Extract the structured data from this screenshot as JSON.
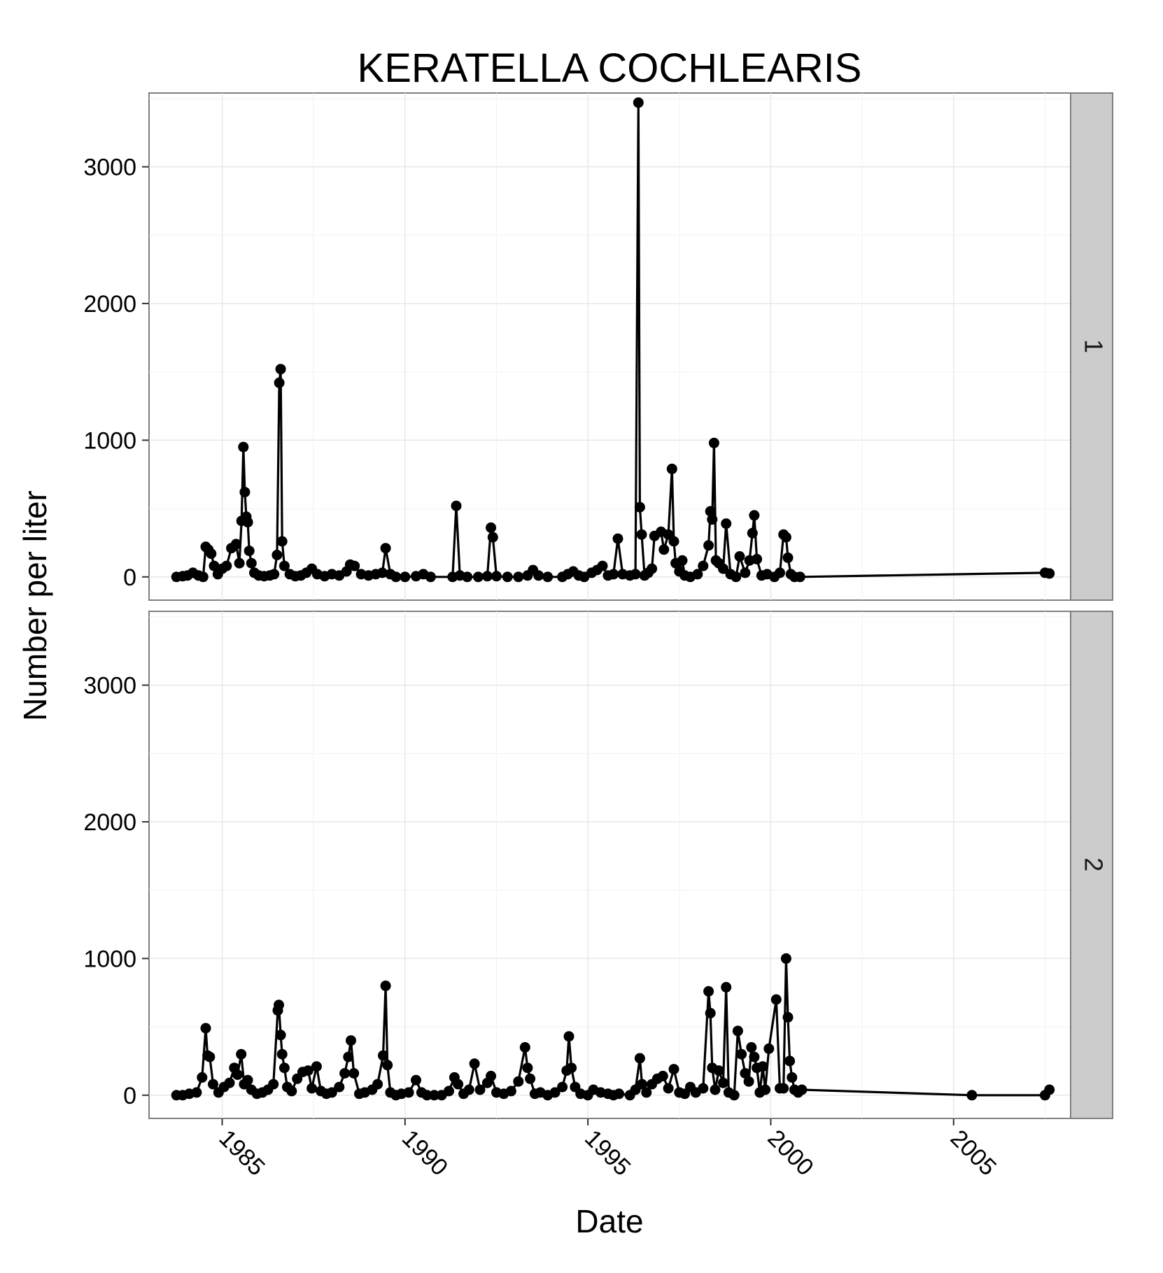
{
  "chart_data": {
    "type": "line",
    "title": "KERATELLA COCHLEARIS",
    "xlabel": "Date",
    "ylabel": "Number per liter",
    "x_ticks": [
      "1985",
      "1990",
      "1995",
      "2000",
      "2005"
    ],
    "y_ticks": [
      "0",
      "1000",
      "2000",
      "3000"
    ],
    "xlim": [
      1983.0,
      2008.2
    ],
    "ylim": [
      -170,
      3540
    ],
    "grid": true,
    "legend": "none",
    "marker": "filled-circle",
    "line_color": "#000000",
    "panels": [
      {
        "strip": "1",
        "points": [
          [
            1983.75,
            0
          ],
          [
            1983.92,
            5
          ],
          [
            1984.05,
            10
          ],
          [
            1984.2,
            30
          ],
          [
            1984.35,
            10
          ],
          [
            1984.48,
            0
          ],
          [
            1984.55,
            220
          ],
          [
            1984.62,
            200
          ],
          [
            1984.7,
            170
          ],
          [
            1984.78,
            80
          ],
          [
            1984.88,
            20
          ],
          [
            1985.0,
            60
          ],
          [
            1985.12,
            80
          ],
          [
            1985.25,
            210
          ],
          [
            1985.38,
            240
          ],
          [
            1985.47,
            100
          ],
          [
            1985.53,
            410
          ],
          [
            1985.58,
            950
          ],
          [
            1985.62,
            620
          ],
          [
            1985.66,
            440
          ],
          [
            1985.7,
            400
          ],
          [
            1985.74,
            190
          ],
          [
            1985.8,
            100
          ],
          [
            1985.88,
            30
          ],
          [
            1986.0,
            10
          ],
          [
            1986.15,
            5
          ],
          [
            1986.3,
            10
          ],
          [
            1986.42,
            20
          ],
          [
            1986.5,
            160
          ],
          [
            1986.56,
            1420
          ],
          [
            1986.6,
            1520
          ],
          [
            1986.64,
            260
          ],
          [
            1986.7,
            80
          ],
          [
            1986.85,
            20
          ],
          [
            1987.0,
            5
          ],
          [
            1987.15,
            10
          ],
          [
            1987.3,
            30
          ],
          [
            1987.45,
            60
          ],
          [
            1987.6,
            20
          ],
          [
            1987.8,
            5
          ],
          [
            1988.0,
            20
          ],
          [
            1988.2,
            10
          ],
          [
            1988.4,
            40
          ],
          [
            1988.5,
            90
          ],
          [
            1988.62,
            80
          ],
          [
            1988.8,
            20
          ],
          [
            1989.0,
            10
          ],
          [
            1989.2,
            20
          ],
          [
            1989.38,
            30
          ],
          [
            1989.47,
            210
          ],
          [
            1989.6,
            20
          ],
          [
            1989.75,
            0
          ],
          [
            1990.0,
            0
          ],
          [
            1990.3,
            5
          ],
          [
            1990.5,
            20
          ],
          [
            1990.7,
            0
          ],
          [
            1991.3,
            0
          ],
          [
            1991.4,
            520
          ],
          [
            1991.5,
            10
          ],
          [
            1991.7,
            0
          ],
          [
            1992.0,
            0
          ],
          [
            1992.25,
            5
          ],
          [
            1992.35,
            360
          ],
          [
            1992.4,
            290
          ],
          [
            1992.5,
            5
          ],
          [
            1992.8,
            0
          ],
          [
            1993.1,
            0
          ],
          [
            1993.35,
            10
          ],
          [
            1993.5,
            50
          ],
          [
            1993.65,
            10
          ],
          [
            1993.9,
            0
          ],
          [
            1994.3,
            0
          ],
          [
            1994.45,
            20
          ],
          [
            1994.6,
            40
          ],
          [
            1994.75,
            10
          ],
          [
            1994.9,
            0
          ],
          [
            1995.1,
            30
          ],
          [
            1995.25,
            50
          ],
          [
            1995.4,
            80
          ],
          [
            1995.55,
            10
          ],
          [
            1995.7,
            20
          ],
          [
            1995.82,
            280
          ],
          [
            1995.95,
            20
          ],
          [
            1996.15,
            10
          ],
          [
            1996.3,
            20
          ],
          [
            1996.38,
            3470
          ],
          [
            1996.42,
            510
          ],
          [
            1996.47,
            310
          ],
          [
            1996.55,
            10
          ],
          [
            1996.65,
            30
          ],
          [
            1996.75,
            60
          ],
          [
            1996.82,
            300
          ],
          [
            1997.0,
            330
          ],
          [
            1997.08,
            200
          ],
          [
            1997.2,
            310
          ],
          [
            1997.3,
            790
          ],
          [
            1997.35,
            260
          ],
          [
            1997.4,
            100
          ],
          [
            1997.5,
            40
          ],
          [
            1997.58,
            120
          ],
          [
            1997.65,
            10
          ],
          [
            1997.8,
            0
          ],
          [
            1998.0,
            20
          ],
          [
            1998.15,
            80
          ],
          [
            1998.3,
            230
          ],
          [
            1998.35,
            480
          ],
          [
            1998.4,
            420
          ],
          [
            1998.45,
            980
          ],
          [
            1998.5,
            120
          ],
          [
            1998.58,
            100
          ],
          [
            1998.7,
            60
          ],
          [
            1998.78,
            390
          ],
          [
            1998.9,
            20
          ],
          [
            1999.05,
            0
          ],
          [
            1999.15,
            150
          ],
          [
            1999.3,
            30
          ],
          [
            1999.42,
            120
          ],
          [
            1999.5,
            320
          ],
          [
            1999.55,
            450
          ],
          [
            1999.62,
            130
          ],
          [
            1999.75,
            10
          ],
          [
            1999.9,
            20
          ],
          [
            2000.1,
            0
          ],
          [
            2000.25,
            30
          ],
          [
            2000.35,
            310
          ],
          [
            2000.42,
            290
          ],
          [
            2000.47,
            140
          ],
          [
            2000.55,
            20
          ],
          [
            2000.65,
            0
          ],
          [
            2000.8,
            0
          ],
          [
            2007.5,
            30
          ],
          [
            2007.62,
            25
          ]
        ]
      },
      {
        "strip": "2",
        "points": [
          [
            1983.75,
            0
          ],
          [
            1983.92,
            0
          ],
          [
            1984.1,
            10
          ],
          [
            1984.3,
            20
          ],
          [
            1984.45,
            130
          ],
          [
            1984.55,
            490
          ],
          [
            1984.6,
            290
          ],
          [
            1984.66,
            280
          ],
          [
            1984.75,
            80
          ],
          [
            1984.9,
            20
          ],
          [
            1985.05,
            60
          ],
          [
            1985.2,
            90
          ],
          [
            1985.33,
            200
          ],
          [
            1985.42,
            150
          ],
          [
            1985.52,
            300
          ],
          [
            1985.6,
            80
          ],
          [
            1985.7,
            110
          ],
          [
            1985.8,
            40
          ],
          [
            1985.95,
            10
          ],
          [
            1986.1,
            20
          ],
          [
            1986.25,
            40
          ],
          [
            1986.4,
            80
          ],
          [
            1986.52,
            620
          ],
          [
            1986.55,
            660
          ],
          [
            1986.6,
            440
          ],
          [
            1986.64,
            300
          ],
          [
            1986.7,
            200
          ],
          [
            1986.78,
            60
          ],
          [
            1986.9,
            30
          ],
          [
            1987.05,
            120
          ],
          [
            1987.2,
            170
          ],
          [
            1987.35,
            180
          ],
          [
            1987.45,
            50
          ],
          [
            1987.58,
            210
          ],
          [
            1987.7,
            30
          ],
          [
            1987.85,
            10
          ],
          [
            1988.0,
            20
          ],
          [
            1988.2,
            60
          ],
          [
            1988.35,
            160
          ],
          [
            1988.45,
            280
          ],
          [
            1988.52,
            400
          ],
          [
            1988.6,
            160
          ],
          [
            1988.75,
            10
          ],
          [
            1988.9,
            20
          ],
          [
            1989.1,
            40
          ],
          [
            1989.25,
            80
          ],
          [
            1989.4,
            290
          ],
          [
            1989.47,
            800
          ],
          [
            1989.52,
            220
          ],
          [
            1989.6,
            20
          ],
          [
            1989.75,
            0
          ],
          [
            1989.9,
            10
          ],
          [
            1990.1,
            20
          ],
          [
            1990.3,
            110
          ],
          [
            1990.45,
            20
          ],
          [
            1990.6,
            0
          ],
          [
            1990.8,
            0
          ],
          [
            1991.0,
            0
          ],
          [
            1991.2,
            30
          ],
          [
            1991.35,
            130
          ],
          [
            1991.45,
            80
          ],
          [
            1991.6,
            10
          ],
          [
            1991.75,
            40
          ],
          [
            1991.9,
            230
          ],
          [
            1992.05,
            40
          ],
          [
            1992.25,
            90
          ],
          [
            1992.35,
            140
          ],
          [
            1992.5,
            20
          ],
          [
            1992.7,
            10
          ],
          [
            1992.9,
            30
          ],
          [
            1993.1,
            100
          ],
          [
            1993.28,
            350
          ],
          [
            1993.35,
            200
          ],
          [
            1993.42,
            120
          ],
          [
            1993.55,
            10
          ],
          [
            1993.7,
            20
          ],
          [
            1993.9,
            0
          ],
          [
            1994.1,
            20
          ],
          [
            1994.3,
            60
          ],
          [
            1994.42,
            180
          ],
          [
            1994.48,
            430
          ],
          [
            1994.55,
            200
          ],
          [
            1994.65,
            60
          ],
          [
            1994.8,
            10
          ],
          [
            1995.0,
            0
          ],
          [
            1995.15,
            40
          ],
          [
            1995.35,
            20
          ],
          [
            1995.55,
            10
          ],
          [
            1995.7,
            0
          ],
          [
            1995.85,
            10
          ],
          [
            1996.15,
            0
          ],
          [
            1996.3,
            40
          ],
          [
            1996.42,
            270
          ],
          [
            1996.48,
            80
          ],
          [
            1996.6,
            20
          ],
          [
            1996.75,
            80
          ],
          [
            1996.9,
            120
          ],
          [
            1997.05,
            140
          ],
          [
            1997.2,
            50
          ],
          [
            1997.35,
            190
          ],
          [
            1997.5,
            20
          ],
          [
            1997.65,
            10
          ],
          [
            1997.8,
            60
          ],
          [
            1997.95,
            20
          ],
          [
            1998.15,
            50
          ],
          [
            1998.3,
            760
          ],
          [
            1998.35,
            600
          ],
          [
            1998.4,
            200
          ],
          [
            1998.48,
            40
          ],
          [
            1998.58,
            180
          ],
          [
            1998.7,
            90
          ],
          [
            1998.78,
            790
          ],
          [
            1998.85,
            20
          ],
          [
            1999.0,
            0
          ],
          [
            1999.1,
            470
          ],
          [
            1999.2,
            300
          ],
          [
            1999.3,
            160
          ],
          [
            1999.4,
            100
          ],
          [
            1999.47,
            350
          ],
          [
            1999.55,
            280
          ],
          [
            1999.62,
            200
          ],
          [
            1999.7,
            20
          ],
          [
            1999.78,
            210
          ],
          [
            1999.85,
            40
          ],
          [
            1999.95,
            340
          ],
          [
            2000.15,
            700
          ],
          [
            2000.25,
            50
          ],
          [
            2000.35,
            50
          ],
          [
            2000.42,
            1000
          ],
          [
            2000.47,
            570
          ],
          [
            2000.52,
            250
          ],
          [
            2000.58,
            130
          ],
          [
            2000.65,
            40
          ],
          [
            2000.75,
            20
          ],
          [
            2000.85,
            40
          ],
          [
            2005.5,
            0
          ],
          [
            2007.5,
            0
          ],
          [
            2007.62,
            40
          ]
        ]
      }
    ]
  }
}
